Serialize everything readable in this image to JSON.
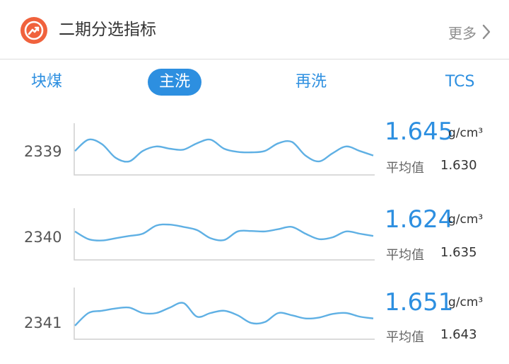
{
  "header": {
    "title": "二期分选指标",
    "more_label": "更多",
    "icon": "trend-up-icon",
    "icon_color": "#f0623d"
  },
  "tabs": [
    {
      "label": "块煤",
      "active": false
    },
    {
      "label": "主洗",
      "active": true
    },
    {
      "label": "再洗",
      "active": false
    },
    {
      "label": "TCS",
      "active": false
    }
  ],
  "colors": {
    "accent": "#2d8fe0",
    "line": "#5fb0e4",
    "axis": "#cfcfcf"
  },
  "rows": [
    {
      "id": "2339",
      "value": "1.645",
      "unit": "g/cm³",
      "avg_label": "平均值",
      "avg_value": "1.630"
    },
    {
      "id": "2340",
      "value": "1.624",
      "unit": "g/cm³",
      "avg_label": "平均值",
      "avg_value": "1.635"
    },
    {
      "id": "2341",
      "value": "1.651",
      "unit": "g/cm³",
      "avg_label": "平均值",
      "avg_value": "1.643"
    }
  ],
  "chart_data": [
    {
      "type": "line",
      "label": "2339",
      "values": [
        0.45,
        0.7,
        0.6,
        0.3,
        0.22,
        0.45,
        0.55,
        0.5,
        0.48,
        0.62,
        0.7,
        0.5,
        0.43,
        0.42,
        0.45,
        0.62,
        0.65,
        0.35,
        0.22,
        0.4,
        0.55,
        0.45,
        0.35
      ]
    },
    {
      "type": "line",
      "label": "2340",
      "values": [
        0.55,
        0.38,
        0.35,
        0.4,
        0.45,
        0.5,
        0.68,
        0.7,
        0.65,
        0.58,
        0.4,
        0.36,
        0.55,
        0.56,
        0.55,
        0.6,
        0.65,
        0.5,
        0.38,
        0.42,
        0.55,
        0.5,
        0.45
      ]
    },
    {
      "type": "line",
      "label": "2341",
      "values": [
        0.22,
        0.5,
        0.55,
        0.6,
        0.62,
        0.5,
        0.5,
        0.62,
        0.72,
        0.42,
        0.5,
        0.55,
        0.45,
        0.28,
        0.3,
        0.5,
        0.45,
        0.38,
        0.4,
        0.48,
        0.5,
        0.42,
        0.38
      ]
    }
  ]
}
